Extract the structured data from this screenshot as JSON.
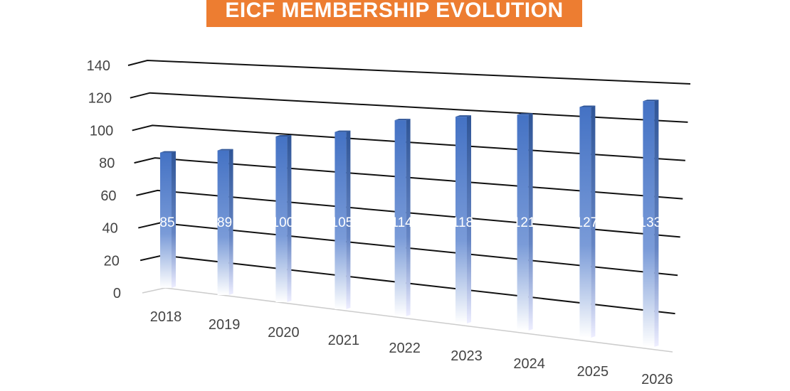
{
  "chart_data": {
    "type": "bar",
    "title": "EICF MEMBERSHIP EVOLUTION",
    "categories": [
      "2018",
      "2019",
      "2020",
      "2021",
      "2022",
      "2023",
      "2024",
      "2025",
      "2026"
    ],
    "values": [
      85,
      89,
      100,
      105,
      114,
      118,
      121,
      127,
      133
    ],
    "ylim": [
      0,
      140
    ],
    "yticks": [
      "0",
      "20",
      "40",
      "60",
      "80",
      "100",
      "120",
      "140"
    ],
    "grid": true,
    "colors": {
      "bar": "#4472C4",
      "title_bg": "#ED7D31"
    }
  }
}
